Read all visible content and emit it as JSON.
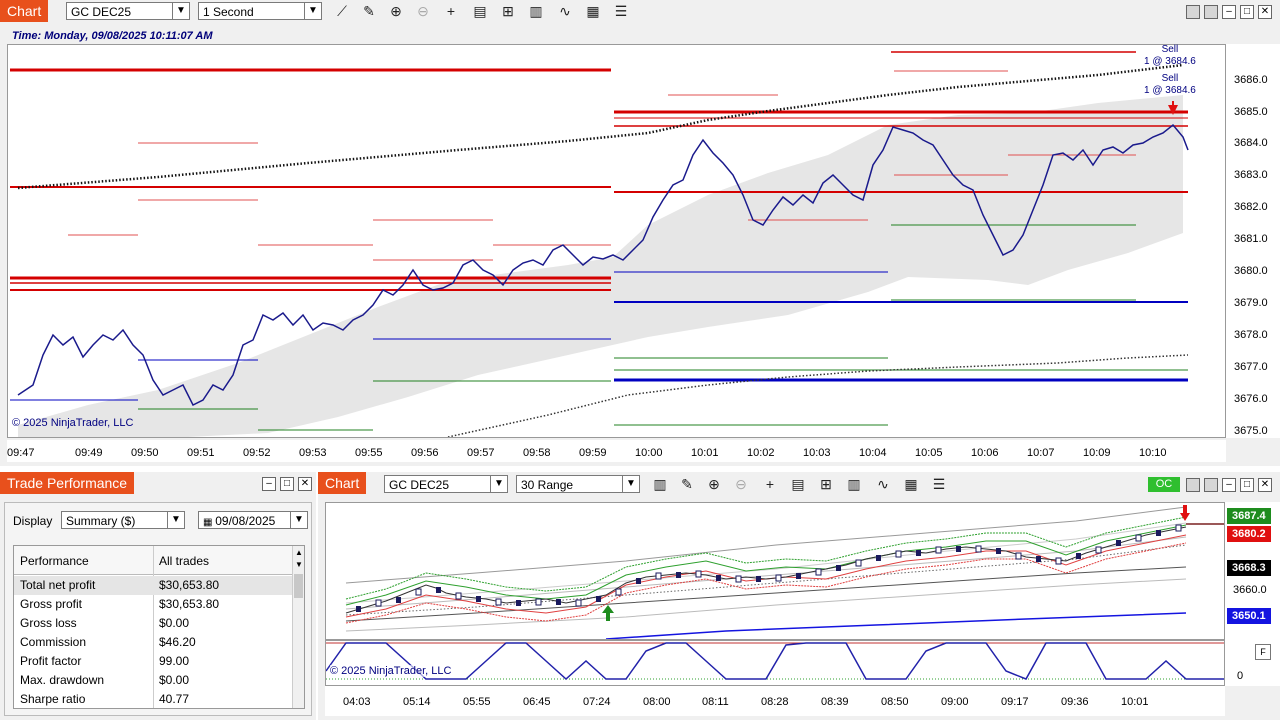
{
  "top_chart": {
    "tab_title": "Chart",
    "instrument": "GC DEC25",
    "interval": "1 Second",
    "time_label": "Time: Monday, 09/08/2025 10:11:07 AM",
    "copyright": "© 2025 NinjaTrader, LLC",
    "sell_label_1": "Sell",
    "sell_label_1b": "1 @ 3684.6",
    "sell_label_2": "Sell",
    "sell_label_2b": "1 @ 3684.6",
    "y_ticks": [
      "3686.0",
      "3685.0",
      "3684.0",
      "3683.0",
      "3682.0",
      "3681.0",
      "3680.0",
      "3679.0",
      "3678.0",
      "3677.0",
      "3676.0",
      "3675.0"
    ],
    "x_ticks": [
      "09:47",
      "09:49",
      "09:50",
      "09:51",
      "09:52",
      "09:53",
      "09:55",
      "09:56",
      "09:57",
      "09:58",
      "09:59",
      "10:00",
      "10:01",
      "10:02",
      "10:03",
      "10:04",
      "10:05",
      "10:06",
      "10:07",
      "10:09",
      "10:10"
    ],
    "toolbar_icons": [
      "line-tool-icon",
      "pencil-icon",
      "zoom-in-icon",
      "zoom-out-icon",
      "crosshair-icon",
      "properties-icon",
      "data-box-icon",
      "bar-type-icon",
      "indicators-icon",
      "strategies-icon",
      "list-icon"
    ]
  },
  "trade_performance": {
    "tab_title": "Trade Performance",
    "display_label": "Display",
    "display_value": "Summary ($)",
    "date_value": "09/08/2025",
    "col_performance": "Performance",
    "col_all_trades": "All trades",
    "rows": [
      {
        "label": "Total net profit",
        "value": "$30,653.80"
      },
      {
        "label": "Gross profit",
        "value": "$30,653.80"
      },
      {
        "label": "Gross loss",
        "value": "$0.00"
      },
      {
        "label": "Commission",
        "value": "$46.20"
      },
      {
        "label": "Profit factor",
        "value": "99.00"
      },
      {
        "label": "Max. drawdown",
        "value": "$0.00"
      },
      {
        "label": "Sharpe ratio",
        "value": "40.77"
      }
    ]
  },
  "bottom_chart": {
    "tab_title": "Chart",
    "instrument": "GC DEC25",
    "interval": "30 Range",
    "oc_label": "OC",
    "copyright": "© 2025 NinjaTrader, LLC",
    "price_tags": [
      {
        "value": "3687.4",
        "color": "#1e8c1e"
      },
      {
        "value": "3680.2",
        "color": "#e01010"
      },
      {
        "value": "3668.3",
        "color": "#000000"
      },
      {
        "value": "3660.0",
        "color": "#ffffff"
      },
      {
        "value": "3650.1",
        "color": "#1414e0"
      }
    ],
    "indicator_tick": "0",
    "x_ticks": [
      "04:03",
      "05:14",
      "05:55",
      "06:45",
      "07:24",
      "08:00",
      "08:11",
      "08:28",
      "08:39",
      "08:50",
      "09:00",
      "09:17",
      "09:36",
      "10:01"
    ]
  }
}
